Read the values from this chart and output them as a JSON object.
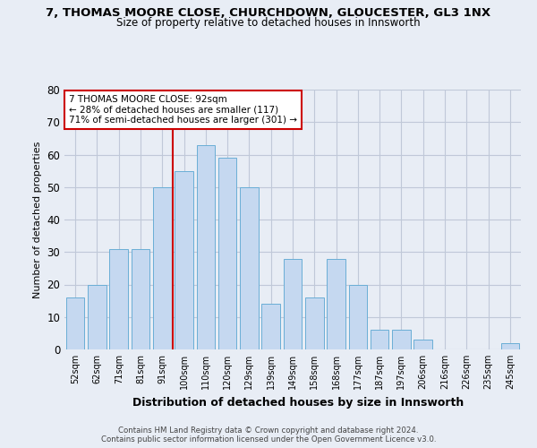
{
  "title": "7, THOMAS MOORE CLOSE, CHURCHDOWN, GLOUCESTER, GL3 1NX",
  "subtitle": "Size of property relative to detached houses in Innsworth",
  "xlabel": "Distribution of detached houses by size in Innsworth",
  "ylabel": "Number of detached properties",
  "bar_labels": [
    "52sqm",
    "62sqm",
    "71sqm",
    "81sqm",
    "91sqm",
    "100sqm",
    "110sqm",
    "120sqm",
    "129sqm",
    "139sqm",
    "149sqm",
    "158sqm",
    "168sqm",
    "177sqm",
    "187sqm",
    "197sqm",
    "206sqm",
    "216sqm",
    "226sqm",
    "235sqm",
    "245sqm"
  ],
  "bar_heights": [
    16,
    20,
    31,
    31,
    50,
    55,
    63,
    59,
    50,
    14,
    28,
    16,
    28,
    20,
    6,
    6,
    3,
    0,
    0,
    0,
    2
  ],
  "bar_color": "#c5d8f0",
  "bar_edge_color": "#6aaed6",
  "vline_x_index": 4.5,
  "annotation_text": "7 THOMAS MOORE CLOSE: 92sqm\n← 28% of detached houses are smaller (117)\n71% of semi-detached houses are larger (301) →",
  "annotation_box_color": "#ffffff",
  "annotation_box_edge_color": "#cc0000",
  "vline_color": "#cc0000",
  "grid_color": "#c0c8d8",
  "background_color": "#e8edf5",
  "ylim": [
    0,
    80
  ],
  "yticks": [
    0,
    10,
    20,
    30,
    40,
    50,
    60,
    70,
    80
  ],
  "footer": "Contains HM Land Registry data © Crown copyright and database right 2024.\nContains public sector information licensed under the Open Government Licence v3.0."
}
